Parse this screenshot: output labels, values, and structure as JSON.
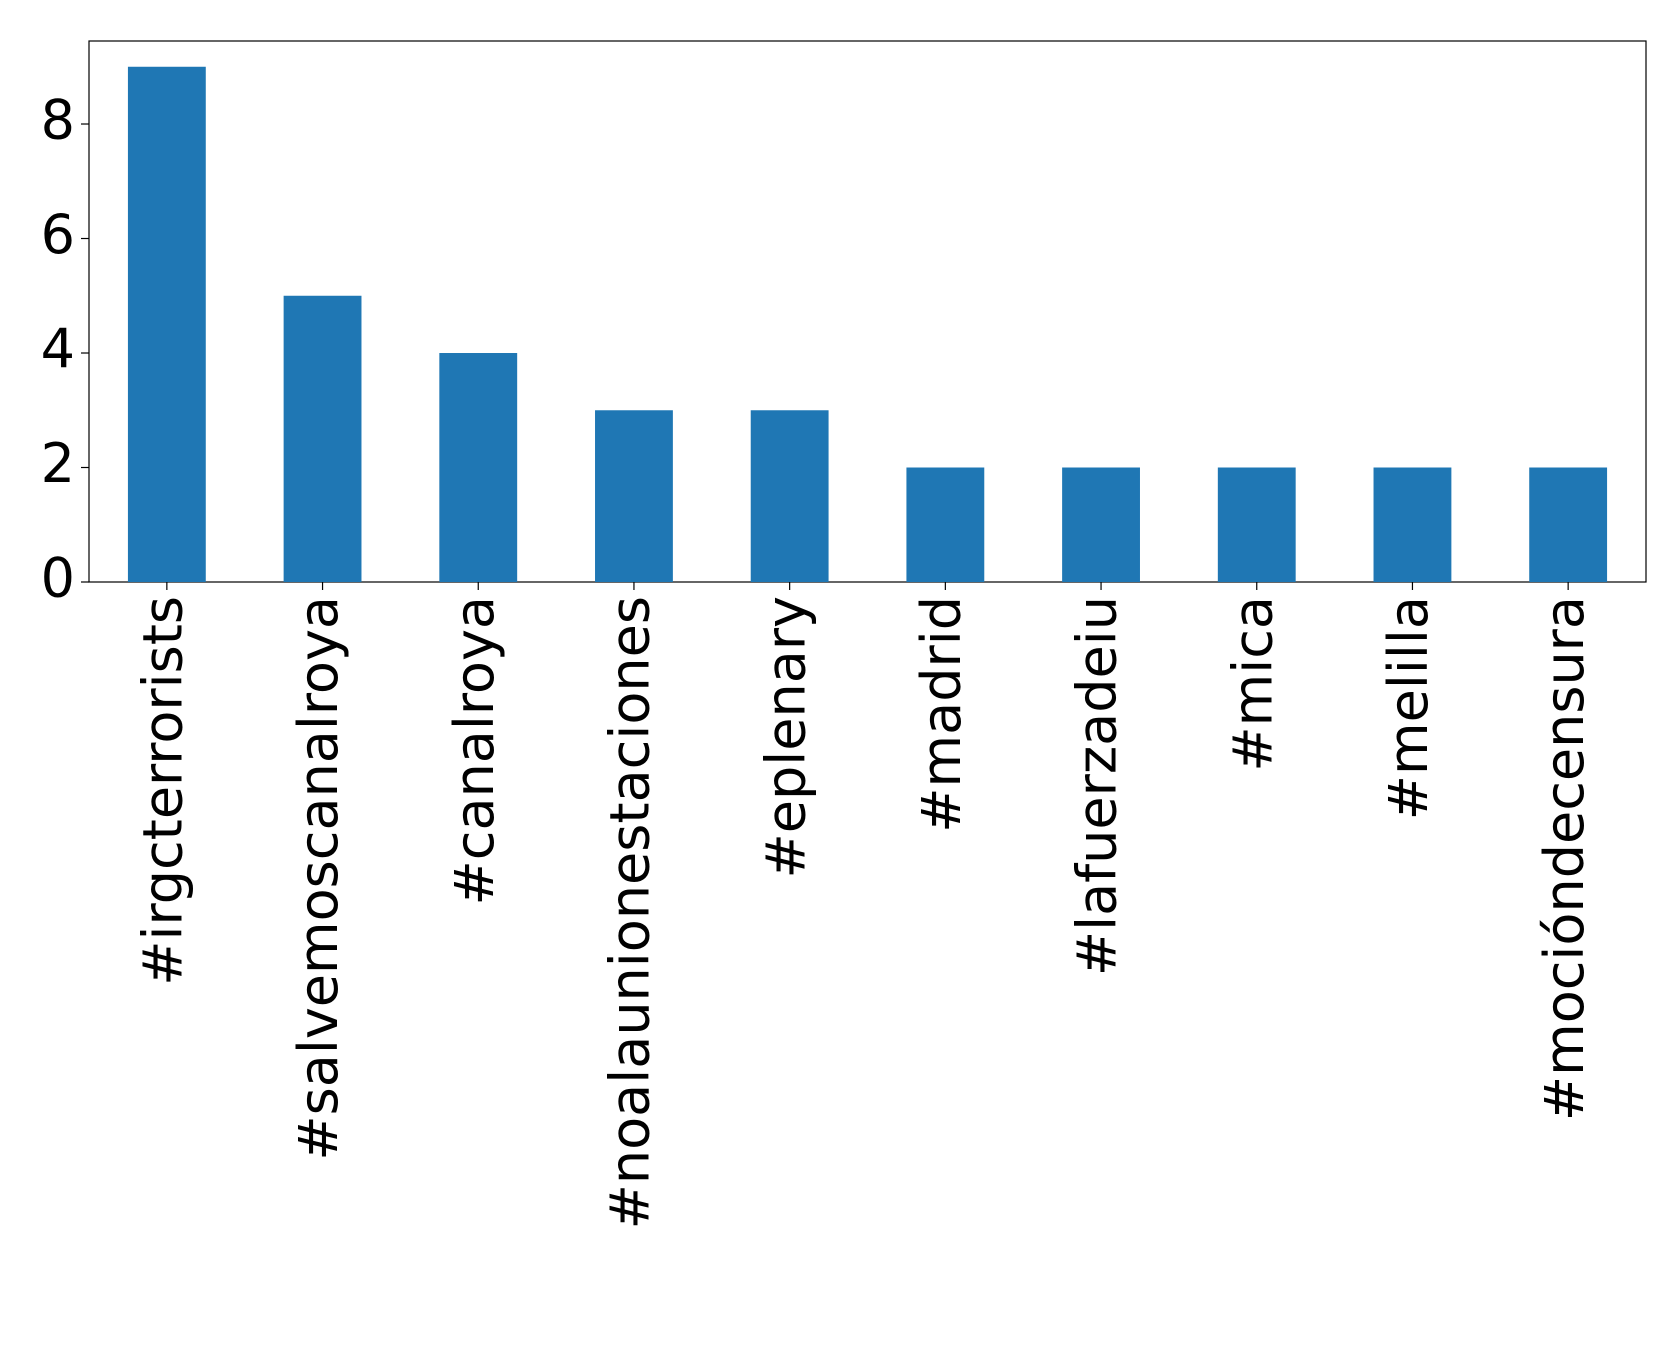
{
  "chart_data": {
    "type": "bar",
    "categories": [
      "#irgcterrorists",
      "#salvemoscanalroya",
      "#canalroya",
      "#noalaunionestaciones",
      "#eplenary",
      "#madrid",
      "#lafuerzadeiu",
      "#mica",
      "#melilla",
      "#mocióndecensura"
    ],
    "values": [
      9,
      5,
      4,
      3,
      3,
      2,
      2,
      2,
      2,
      2
    ],
    "color": "#1f77b4",
    "ylim": [
      0,
      9.45
    ],
    "yticks": [
      0,
      2,
      4,
      6,
      8
    ],
    "grid": false
  }
}
